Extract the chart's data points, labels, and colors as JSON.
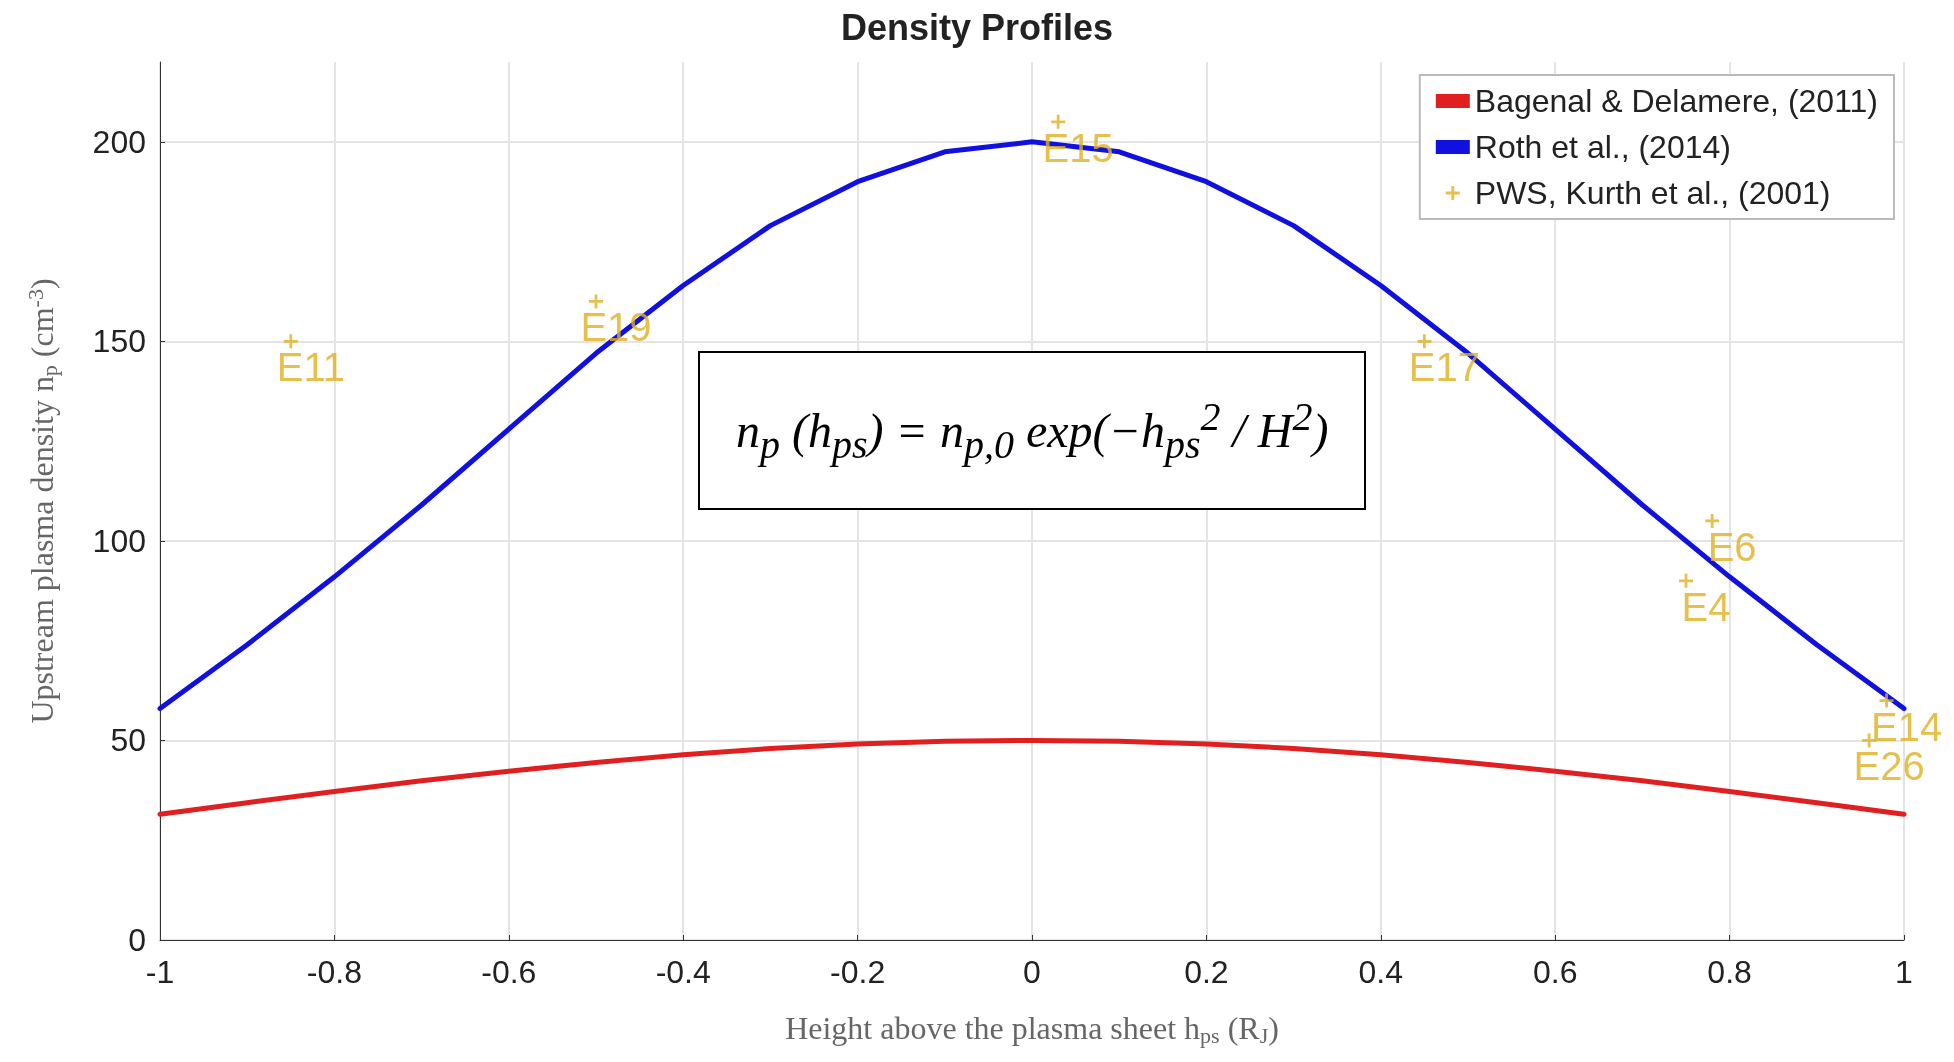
{
  "chart_data": {
    "type": "line",
    "title": "Density Profiles",
    "xlabel": "Height above the plasma sheet h$_{ps}$ (R$_{J}$)",
    "ylabel": "Upstream plasma density n$_{p}$ (cm$^{-3}$)",
    "xlim": [
      -1,
      1
    ],
    "ylim": [
      0,
      220
    ],
    "xticks": [
      -1,
      -0.8,
      -0.6,
      -0.4,
      -0.2,
      0,
      0.2,
      0.4,
      0.6,
      0.8,
      1
    ],
    "yticks": [
      0,
      50,
      100,
      150,
      200
    ],
    "grid": true,
    "legend": "top right",
    "annotations": [
      "n$_{p}$ (h$_{ps}$) = n$_{p,0}$ exp(−h$_{ps}$$^{2}$ / H$^{2}$)"
    ],
    "series": [
      {
        "name": "Bagenal & Delamere, (2011)",
        "color": "#e02020",
        "x": [
          -1,
          -0.9,
          -0.8,
          -0.7,
          -0.6,
          -0.5,
          -0.4,
          -0.3,
          -0.2,
          -0.1,
          0,
          0.1,
          0.2,
          0.3,
          0.4,
          0.5,
          0.6,
          0.7,
          0.8,
          0.9,
          1
        ],
        "values": [
          31.5,
          34.4,
          37.2,
          39.9,
          42.3,
          44.5,
          46.4,
          48,
          49.1,
          49.8,
          50,
          49.8,
          49.1,
          48,
          46.4,
          44.5,
          42.3,
          39.9,
          37.2,
          34.4,
          31.5
        ]
      },
      {
        "name": "Roth et al., (2014)",
        "color": "#1010e0",
        "x": [
          -1,
          -0.9,
          -0.8,
          -0.7,
          -0.6,
          -0.5,
          -0.4,
          -0.3,
          -0.2,
          -0.1,
          0,
          0.1,
          0.2,
          0.3,
          0.4,
          0.5,
          0.6,
          0.7,
          0.8,
          0.9,
          1
        ],
        "values": [
          58,
          74,
          91,
          109,
          128,
          147,
          164,
          179,
          190,
          197.5,
          200,
          197.5,
          190,
          179,
          164,
          147,
          128,
          109,
          91,
          74,
          58
        ]
      },
      {
        "name": "PWS, Kurth et al., (2001)",
        "color": "#e0b020",
        "type": "scatter",
        "marker": "cross",
        "x": [
          -0.85,
          -0.5,
          0.03,
          0.45,
          0.78,
          0.75,
          0.98,
          0.96
        ],
        "values": [
          150,
          160,
          205,
          150,
          105,
          90,
          60,
          50
        ],
        "value_labels": [
          "E11",
          "E19",
          "E15",
          "E17",
          "E6",
          "E4",
          "E14",
          "E26"
        ]
      }
    ]
  }
}
